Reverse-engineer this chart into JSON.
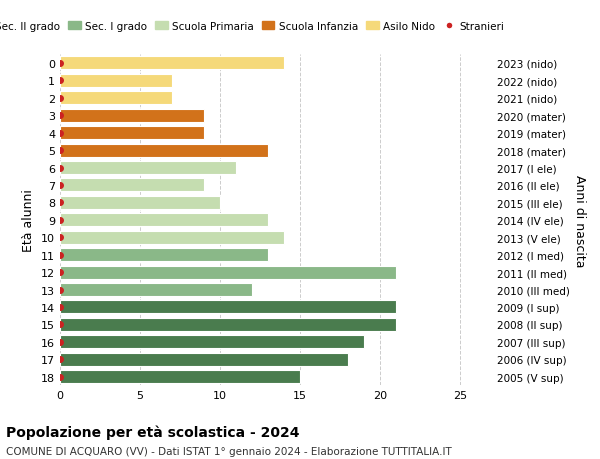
{
  "ages": [
    18,
    17,
    16,
    15,
    14,
    13,
    12,
    11,
    10,
    9,
    8,
    7,
    6,
    5,
    4,
    3,
    2,
    1,
    0
  ],
  "values": [
    15,
    18,
    19,
    21,
    21,
    12,
    21,
    13,
    14,
    13,
    10,
    9,
    11,
    13,
    9,
    9,
    7,
    7,
    14
  ],
  "right_labels": [
    "2005 (V sup)",
    "2006 (IV sup)",
    "2007 (III sup)",
    "2008 (II sup)",
    "2009 (I sup)",
    "2010 (III med)",
    "2011 (II med)",
    "2012 (I med)",
    "2013 (V ele)",
    "2014 (IV ele)",
    "2015 (III ele)",
    "2016 (II ele)",
    "2017 (I ele)",
    "2018 (mater)",
    "2019 (mater)",
    "2020 (mater)",
    "2021 (nido)",
    "2022 (nido)",
    "2023 (nido)"
  ],
  "bar_colors": [
    "#4a7c4e",
    "#4a7c4e",
    "#4a7c4e",
    "#4a7c4e",
    "#4a7c4e",
    "#8ab888",
    "#8ab888",
    "#8ab888",
    "#c5ddb0",
    "#c5ddb0",
    "#c5ddb0",
    "#c5ddb0",
    "#c5ddb0",
    "#d2721a",
    "#d2721a",
    "#d2721a",
    "#f5d97a",
    "#f5d97a",
    "#f5d97a"
  ],
  "legend_labels": [
    "Sec. II grado",
    "Sec. I grado",
    "Scuola Primaria",
    "Scuola Infanzia",
    "Asilo Nido",
    "Stranieri"
  ],
  "legend_colors": [
    "#4a7c4e",
    "#8ab888",
    "#c5ddb0",
    "#d2721a",
    "#f5d97a",
    "#cc2222"
  ],
  "stranieri_dot_color": "#cc2222",
  "ylabel": "Età alunni",
  "right_ylabel": "Anni di nascita",
  "title": "Popolazione per età scolastica - 2024",
  "subtitle": "COMUNE DI ACQUARO (VV) - Dati ISTAT 1° gennaio 2024 - Elaborazione TUTTITALIA.IT",
  "xlim": [
    0,
    27
  ],
  "xticks": [
    0,
    5,
    10,
    15,
    20,
    25
  ],
  "background_color": "#ffffff",
  "grid_color": "#cccccc"
}
